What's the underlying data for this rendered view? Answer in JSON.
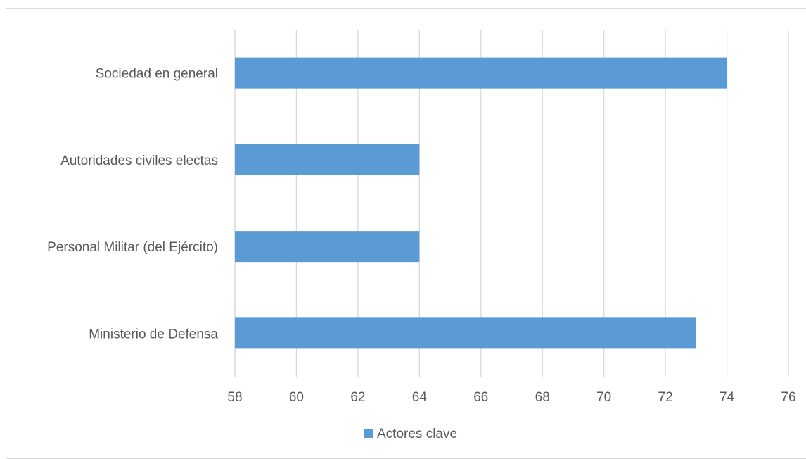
{
  "chart_data": {
    "type": "bar",
    "orientation": "horizontal",
    "categories": [
      "Sociedad en general",
      "Autoridades civiles electas",
      "Personal Militar (del Ejército)",
      "Ministerio de Defensa"
    ],
    "series": [
      {
        "name": "Actores clave",
        "values": [
          74,
          64,
          64,
          73
        ],
        "color": "#5b9bd5"
      }
    ],
    "xlim": [
      58,
      76
    ],
    "xticks": [
      "58",
      "60",
      "62",
      "64",
      "66",
      "68",
      "70",
      "72",
      "74",
      "76"
    ],
    "grid": "vertical",
    "legend_position": "bottom",
    "title": "",
    "xlabel": "",
    "ylabel": ""
  },
  "colors": {
    "bar": "#5b9bd5",
    "grid": "#d9d9d9",
    "text": "#595959"
  }
}
